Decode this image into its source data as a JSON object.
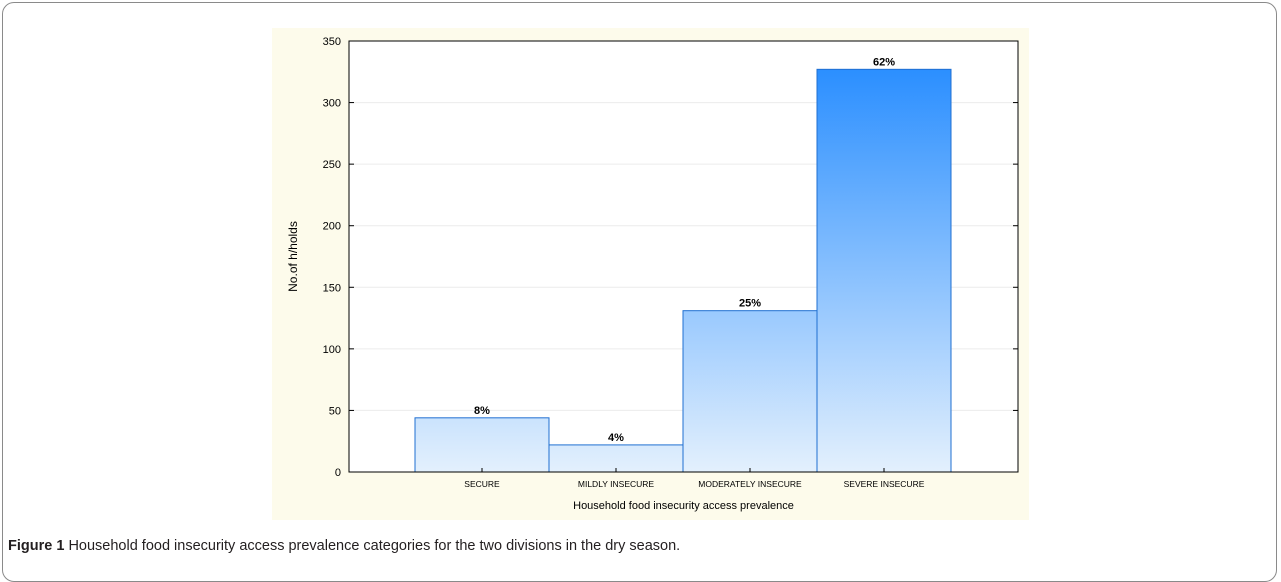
{
  "caption": {
    "label": "Figure 1",
    "text": "Household food insecurity access prevalence categories for the two divisions in the dry season."
  },
  "colors": {
    "bar_top": "#1e88ff",
    "bar_bottom": "#e3f0fd",
    "bar_border": "#1f6fd1",
    "plot_bg": "#fdfbeb"
  },
  "chart_data": {
    "type": "bar",
    "categories": [
      "SECURE",
      "MILDLY INSECURE",
      "MODERATELY INSECURE",
      "SEVERE INSECURE"
    ],
    "values": [
      44,
      22,
      131,
      327
    ],
    "data_labels": [
      "8%",
      "4%",
      "25%",
      "62%"
    ],
    "xlabel": "Household food insecurity access prevalence",
    "ylabel": "No.of h/holds",
    "ylim": [
      0,
      350
    ],
    "yticks": [
      0,
      50,
      100,
      150,
      200,
      250,
      300,
      350
    ],
    "grid": true
  }
}
